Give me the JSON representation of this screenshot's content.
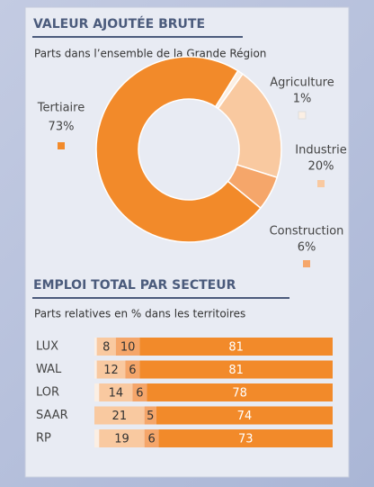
{
  "chart_data": [
    {
      "type": "pie",
      "title": "VALEUR AJOUTÉE BRUTE",
      "subtitle": "Parts dans l’ensemble de la Grande Région",
      "categories": [
        "Agriculture",
        "Industrie",
        "Construction",
        "Tertiaire"
      ],
      "values": [
        1,
        20,
        6,
        73
      ],
      "value_labels": [
        "1%",
        "20%",
        "6%",
        "73%"
      ],
      "colors": [
        "#fbefe4",
        "#f9c9a0",
        "#f5a66a",
        "#f28a2a"
      ],
      "donut": true
    },
    {
      "type": "bar",
      "orientation": "horizontal",
      "stacked": true,
      "title": "EMPLOI TOTAL PAR SECTEUR",
      "subtitle": "Parts relatives en % dans les territoires",
      "categories": [
        "LUX",
        "WAL",
        "LOR",
        "SAAR",
        "RP"
      ],
      "xlim": [
        0,
        100
      ],
      "series": [
        {
          "color": "#fbefe4",
          "values": [
            1,
            1,
            2,
            0,
            2
          ],
          "show_labels": false
        },
        {
          "color": "#f9c9a0",
          "values": [
            8,
            12,
            14,
            21,
            19
          ]
        },
        {
          "color": "#f5a66a",
          "values": [
            10,
            6,
            6,
            5,
            6
          ]
        },
        {
          "color": "#f28a2a",
          "values": [
            81,
            81,
            78,
            74,
            73
          ]
        }
      ]
    }
  ]
}
